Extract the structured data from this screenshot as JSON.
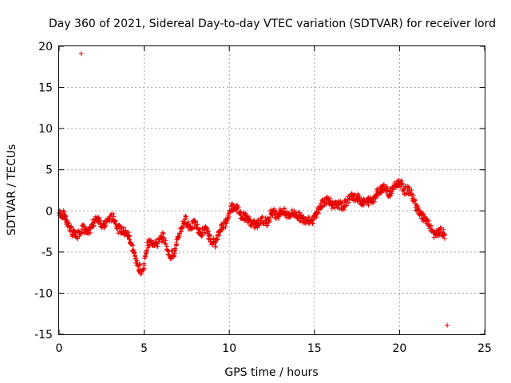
{
  "chart_data": {
    "type": "scatter",
    "title": "Day 360 of 2021, Sidereal Day-to-day VTEC variation (SDTVAR) for receiver lord",
    "xlabel": "GPS time / hours",
    "ylabel": "SDTVAR / TECUs",
    "xlim": [
      0,
      25
    ],
    "ylim": [
      -15,
      20
    ],
    "xticks": [
      0,
      5,
      10,
      15,
      20,
      25
    ],
    "yticks": [
      -15,
      -10,
      -5,
      0,
      5,
      10,
      15,
      20
    ],
    "grid": true,
    "marker": "+",
    "color": "#e60000",
    "outliers": [
      {
        "x": 1.3,
        "y": 19.1
      },
      {
        "x": 22.8,
        "y": -13.9
      }
    ],
    "series_control": [
      [
        0.0,
        -0.3
      ],
      [
        0.3,
        -0.5
      ],
      [
        0.5,
        -1.5
      ],
      [
        0.8,
        -2.8
      ],
      [
        1.1,
        -2.9
      ],
      [
        1.4,
        -2.0
      ],
      [
        1.7,
        -2.8
      ],
      [
        2.0,
        -1.5
      ],
      [
        2.3,
        -0.8
      ],
      [
        2.6,
        -2.0
      ],
      [
        2.9,
        -1.0
      ],
      [
        3.2,
        -0.8
      ],
      [
        3.5,
        -2.2
      ],
      [
        3.8,
        -2.5
      ],
      [
        4.1,
        -3.0
      ],
      [
        4.3,
        -4.5
      ],
      [
        4.6,
        -6.5
      ],
      [
        4.9,
        -7.5
      ],
      [
        5.2,
        -4.0
      ],
      [
        5.5,
        -3.8
      ],
      [
        5.8,
        -4.0
      ],
      [
        6.1,
        -3.0
      ],
      [
        6.5,
        -5.5
      ],
      [
        6.8,
        -5.0
      ],
      [
        7.1,
        -2.5
      ],
      [
        7.4,
        -1.0
      ],
      [
        7.7,
        -2.0
      ],
      [
        8.0,
        -1.5
      ],
      [
        8.3,
        -2.8
      ],
      [
        8.6,
        -2.2
      ],
      [
        8.9,
        -3.5
      ],
      [
        9.2,
        -4.0
      ],
      [
        9.5,
        -2.0
      ],
      [
        9.8,
        -1.5
      ],
      [
        10.1,
        0.5
      ],
      [
        10.4,
        0.5
      ],
      [
        10.7,
        -0.5
      ],
      [
        11.0,
        -0.8
      ],
      [
        11.3,
        -1.5
      ],
      [
        11.6,
        -1.8
      ],
      [
        11.9,
        -1.0
      ],
      [
        12.2,
        -1.5
      ],
      [
        12.5,
        0.0
      ],
      [
        12.8,
        -0.5
      ],
      [
        13.1,
        0.0
      ],
      [
        13.4,
        -0.5
      ],
      [
        13.7,
        -0.3
      ],
      [
        14.0,
        -0.5
      ],
      [
        14.3,
        -1.0
      ],
      [
        14.6,
        -1.0
      ],
      [
        14.9,
        -1.2
      ],
      [
        15.2,
        0.0
      ],
      [
        15.5,
        1.0
      ],
      [
        15.8,
        1.5
      ],
      [
        16.1,
        0.5
      ],
      [
        16.4,
        0.8
      ],
      [
        16.7,
        0.5
      ],
      [
        17.0,
        1.5
      ],
      [
        17.3,
        1.8
      ],
      [
        17.6,
        1.5
      ],
      [
        17.9,
        1.0
      ],
      [
        18.2,
        1.2
      ],
      [
        18.5,
        1.5
      ],
      [
        18.8,
        2.5
      ],
      [
        19.1,
        3.0
      ],
      [
        19.4,
        2.0
      ],
      [
        19.7,
        3.0
      ],
      [
        20.0,
        3.5
      ],
      [
        20.3,
        2.5
      ],
      [
        20.6,
        2.5
      ],
      [
        20.9,
        1.0
      ],
      [
        21.2,
        -0.5
      ],
      [
        21.5,
        -1.0
      ],
      [
        21.8,
        -2.0
      ],
      [
        22.1,
        -3.0
      ],
      [
        22.4,
        -2.5
      ],
      [
        22.7,
        -3.0
      ]
    ]
  }
}
